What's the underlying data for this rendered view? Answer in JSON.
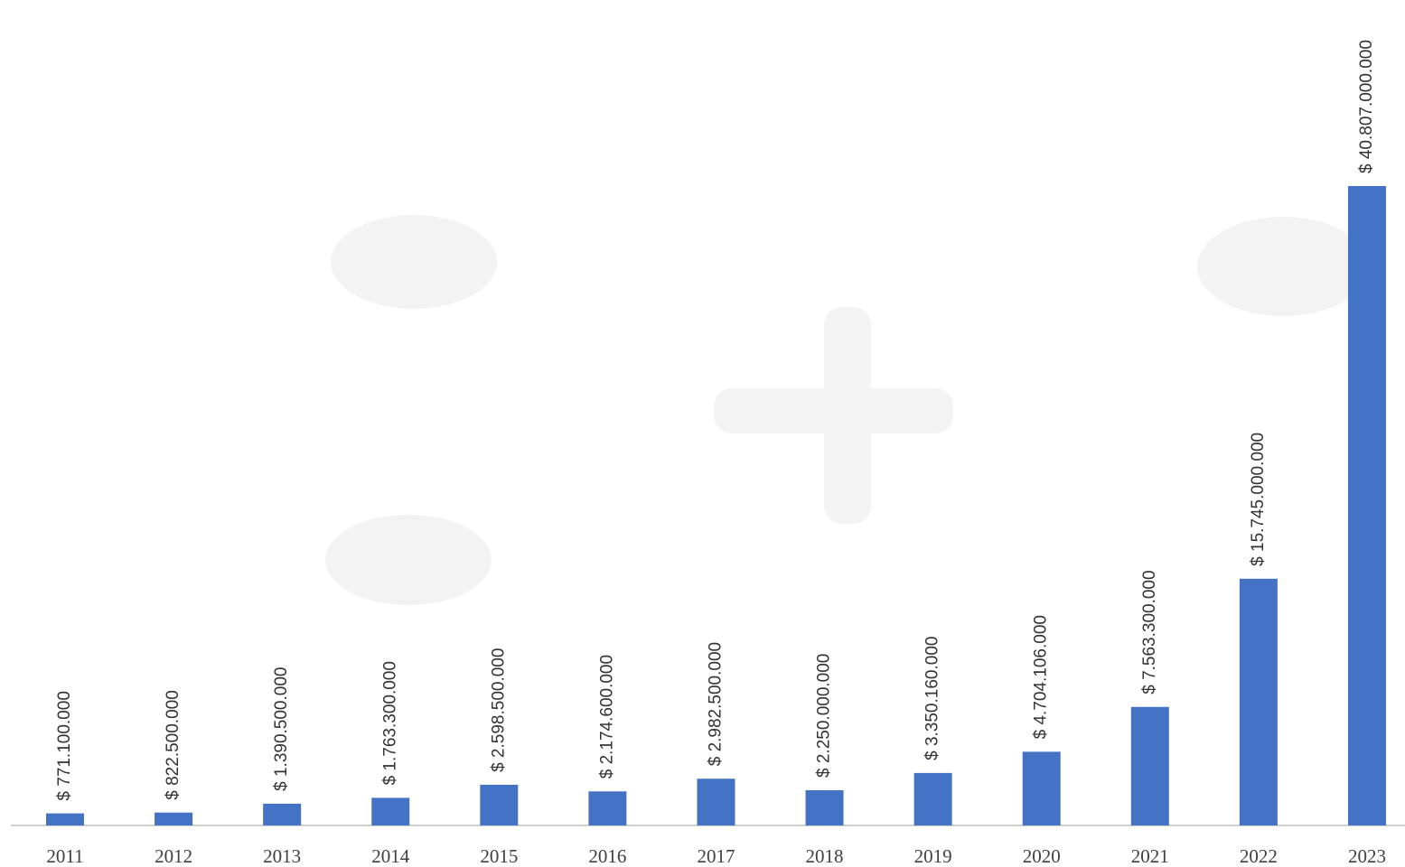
{
  "chart_data": {
    "type": "bar",
    "categories": [
      "2011",
      "2012",
      "2013",
      "2014",
      "2015",
      "2016",
      "2017",
      "2018",
      "2019",
      "2020",
      "2021",
      "2022",
      "2023"
    ],
    "values": [
      771100000,
      822500000,
      1390500000,
      1763300000,
      2598500000,
      2174600000,
      2982500000,
      2250000000,
      3350160000,
      4704106000,
      7563300000,
      15745000000,
      40807000000
    ],
    "value_labels": [
      "$ 771.100.000",
      "$ 822.500.000",
      "$ 1.390.500.000",
      "$ 1.763.300.000",
      "$ 2.598.500.000",
      "$ 2.174.600.000",
      "$ 2.982.500.000",
      "$ 2.250.000.000",
      "$ 3.350.160.000",
      "$ 4.704.106.000",
      "$ 7.563.300.000",
      "$ 15.745.000.000",
      "$ 40.807.000.000"
    ],
    "color": "#4472c4"
  }
}
